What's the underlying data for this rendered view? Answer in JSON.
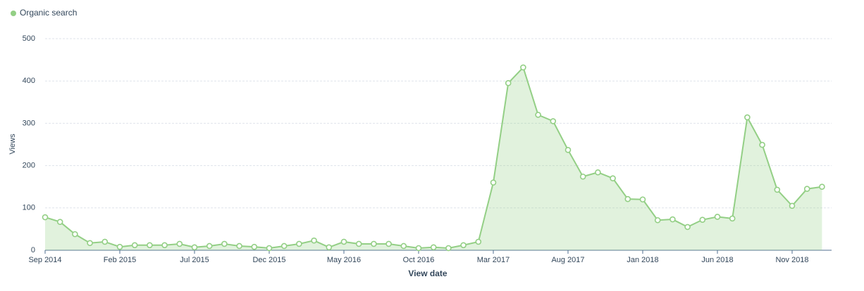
{
  "chart_data": {
    "type": "area",
    "x_label": "View date",
    "y_label": "Views",
    "categories": [
      "Sep 2014",
      null,
      null,
      null,
      null,
      "Feb 2015",
      null,
      null,
      null,
      null,
      "Jul 2015",
      null,
      null,
      null,
      null,
      "Dec 2015",
      null,
      null,
      null,
      null,
      "May 2016",
      null,
      null,
      null,
      null,
      "Oct 2016",
      null,
      null,
      null,
      null,
      "Mar 2017",
      null,
      null,
      null,
      null,
      "Aug 2017",
      null,
      null,
      null,
      null,
      "Jan 2018",
      null,
      null,
      null,
      null,
      "Jun 2018",
      null,
      null,
      null,
      null,
      "Nov 2018",
      null,
      null
    ],
    "series": [
      {
        "name": "Organic search",
        "color": "#93cf85",
        "values": [
          78,
          67,
          38,
          17,
          20,
          8,
          12,
          12,
          12,
          15,
          7,
          10,
          15,
          10,
          8,
          5,
          10,
          15,
          23,
          7,
          20,
          15,
          15,
          15,
          10,
          5,
          7,
          5,
          12,
          20,
          160,
          395,
          432,
          320,
          305,
          237,
          174,
          184,
          170,
          121,
          120,
          71,
          73,
          55,
          72,
          79,
          75,
          314,
          249,
          143,
          105,
          145,
          150
        ]
      }
    ],
    "ylim": [
      0,
      500
    ],
    "yticks": [
      0,
      100,
      200,
      300,
      400,
      500
    ],
    "grid": true
  }
}
